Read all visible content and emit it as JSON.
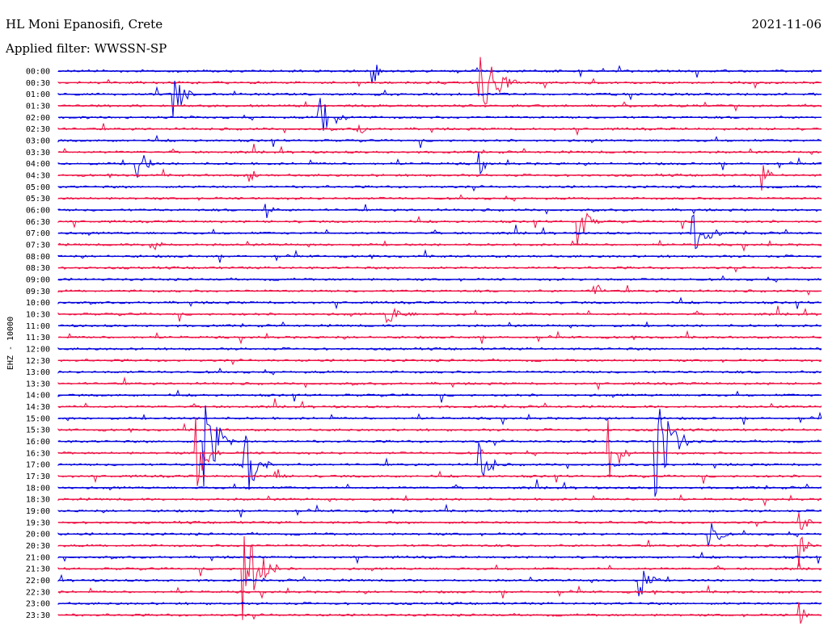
{
  "header": {
    "station": "HL Moni Epanosifi, Crete",
    "filter": "Applied filter: WWSSN-SP",
    "date": "2021-11-06"
  },
  "chart_data": {
    "type": "line",
    "title": "HL Moni Epanosifi, Crete",
    "subtitle": "Applied filter: WWSSN-SP",
    "date": "2021-11-06",
    "ylabel": "EHZ - 10000",
    "row_labels": [
      "00:00",
      "00:30",
      "01:00",
      "01:30",
      "02:00",
      "02:30",
      "03:00",
      "03:30",
      "04:00",
      "04:30",
      "05:00",
      "05:30",
      "06:00",
      "06:30",
      "07:00",
      "07:30",
      "08:00",
      "08:30",
      "09:00",
      "09:30",
      "10:00",
      "10:30",
      "11:00",
      "11:30",
      "12:00",
      "12:30",
      "13:00",
      "13:30",
      "14:00",
      "14:30",
      "15:00",
      "15:30",
      "16:00",
      "16:30",
      "17:00",
      "17:30",
      "18:00",
      "18:30",
      "19:00",
      "19:30",
      "20:00",
      "20:30",
      "21:00",
      "21:30",
      "22:00",
      "22:30",
      "23:00",
      "23:30"
    ],
    "row_minutes": 30,
    "series_colors": [
      "#0000dd",
      "#ee1144"
    ],
    "events": [
      {
        "row": 0,
        "t": 0.41,
        "amp": 28,
        "dur": 0.02
      },
      {
        "row": 1,
        "t": 0.55,
        "amp": 60,
        "dur": 0.05
      },
      {
        "row": 2,
        "t": 0.15,
        "amp": 40,
        "dur": 0.03
      },
      {
        "row": 4,
        "t": 0.34,
        "amp": 45,
        "dur": 0.04
      },
      {
        "row": 5,
        "t": 0.39,
        "amp": 18,
        "dur": 0.02
      },
      {
        "row": 8,
        "t": 0.1,
        "amp": 35,
        "dur": 0.03
      },
      {
        "row": 8,
        "t": 0.55,
        "amp": 22,
        "dur": 0.02
      },
      {
        "row": 9,
        "t": 0.25,
        "amp": 15,
        "dur": 0.02
      },
      {
        "row": 9,
        "t": 0.92,
        "amp": 30,
        "dur": 0.02
      },
      {
        "row": 12,
        "t": 0.27,
        "amp": 20,
        "dur": 0.02
      },
      {
        "row": 13,
        "t": 0.68,
        "amp": 35,
        "dur": 0.03
      },
      {
        "row": 14,
        "t": 0.83,
        "amp": 40,
        "dur": 0.04
      },
      {
        "row": 15,
        "t": 0.12,
        "amp": 15,
        "dur": 0.03
      },
      {
        "row": 19,
        "t": 0.7,
        "amp": 25,
        "dur": 0.02
      },
      {
        "row": 21,
        "t": 0.43,
        "amp": 15,
        "dur": 0.05
      },
      {
        "row": 32,
        "t": 0.19,
        "amp": 90,
        "dur": 0.04
      },
      {
        "row": 32,
        "t": 0.78,
        "amp": 85,
        "dur": 0.05
      },
      {
        "row": 33,
        "t": 0.18,
        "amp": 60,
        "dur": 0.03
      },
      {
        "row": 33,
        "t": 0.72,
        "amp": 60,
        "dur": 0.03
      },
      {
        "row": 34,
        "t": 0.24,
        "amp": 70,
        "dur": 0.04
      },
      {
        "row": 34,
        "t": 0.55,
        "amp": 45,
        "dur": 0.03
      },
      {
        "row": 35,
        "t": 0.28,
        "amp": 30,
        "dur": 0.02
      },
      {
        "row": 39,
        "t": 0.97,
        "amp": 30,
        "dur": 0.02
      },
      {
        "row": 40,
        "t": 0.85,
        "amp": 35,
        "dur": 0.03
      },
      {
        "row": 41,
        "t": 0.97,
        "amp": 30,
        "dur": 0.02
      },
      {
        "row": 43,
        "t": 0.24,
        "amp": 80,
        "dur": 0.05
      },
      {
        "row": 44,
        "t": 0.76,
        "amp": 30,
        "dur": 0.03
      },
      {
        "row": 47,
        "t": 0.97,
        "amp": 18,
        "dur": 0.02
      }
    ],
    "grid": false,
    "legend": "none"
  }
}
